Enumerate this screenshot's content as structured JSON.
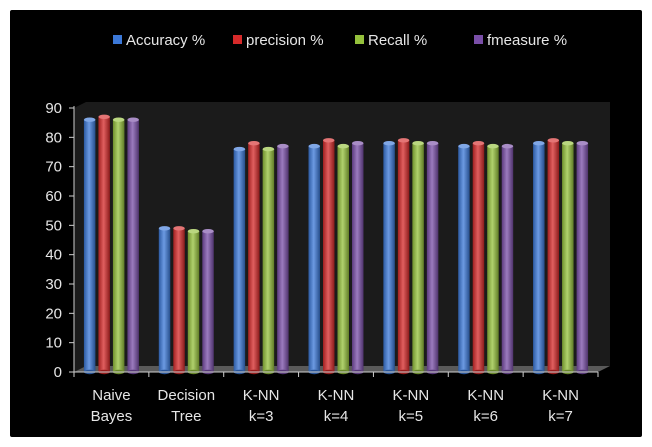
{
  "chart_data": {
    "type": "bar",
    "title": "",
    "xlabel": "",
    "ylabel": "",
    "ylim": [
      0,
      90
    ],
    "yticks": [
      0,
      10,
      20,
      30,
      40,
      50,
      60,
      70,
      80,
      90
    ],
    "grid": false,
    "legend_position": "top",
    "categories": [
      [
        "Naive",
        "Bayes"
      ],
      [
        "Decision",
        "Tree"
      ],
      [
        "K-NN",
        "k=3"
      ],
      [
        "K-NN",
        "k=4"
      ],
      [
        "K-NN",
        "k=5"
      ],
      [
        "K-NN",
        "k=6"
      ],
      [
        "K-NN",
        "k=7"
      ]
    ],
    "series": [
      {
        "name": "Accuracy %",
        "color": "#3b78d8",
        "values": [
          86,
          49,
          76,
          77,
          78,
          77,
          78
        ]
      },
      {
        "name": "precision %",
        "color": "#d62a2a",
        "values": [
          87,
          49,
          78,
          79,
          79,
          78,
          79
        ]
      },
      {
        "name": "Recall %",
        "color": "#95c13c",
        "values": [
          86,
          48,
          76,
          77,
          78,
          77,
          78
        ]
      },
      {
        "name": "fmeasure %",
        "color": "#7a4fa8",
        "values": [
          86,
          48,
          77,
          78,
          78,
          77,
          78
        ]
      }
    ]
  }
}
